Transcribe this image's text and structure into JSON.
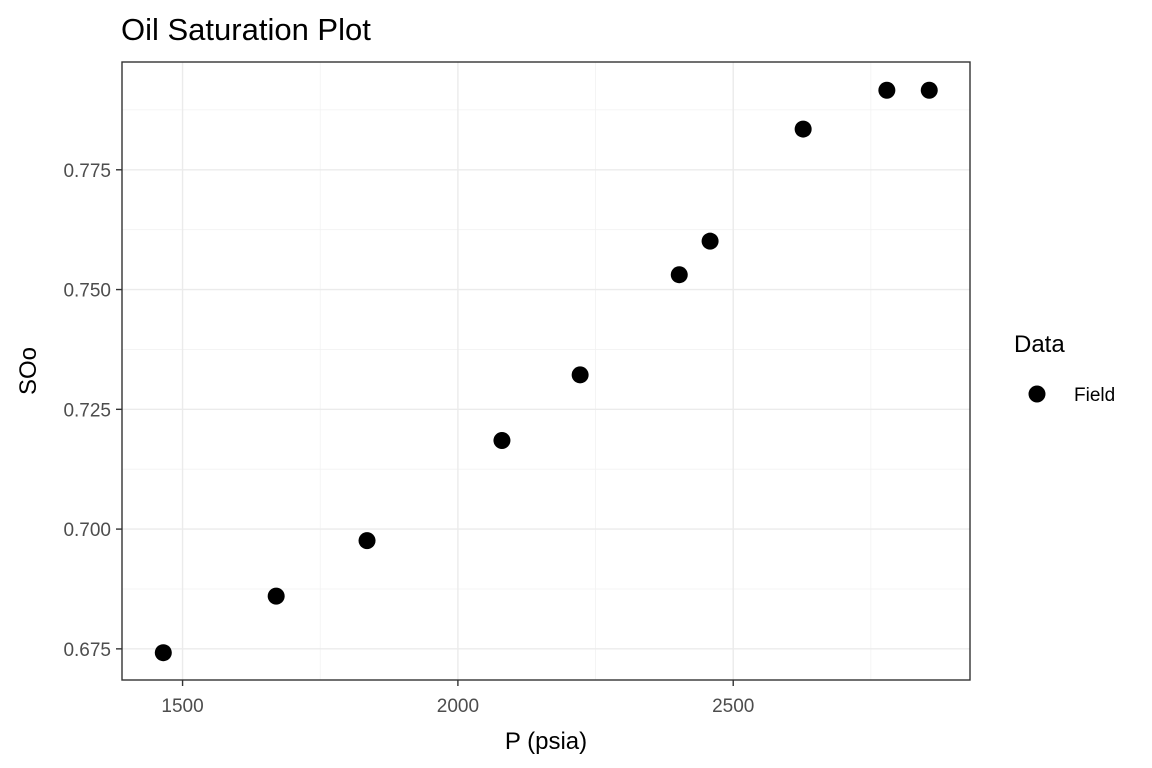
{
  "chart_data": {
    "type": "scatter",
    "title": "Oil Saturation Plot",
    "xlabel": "P (psia)",
    "ylabel": "SOo",
    "xlim": [
      1390,
      2930
    ],
    "ylim": [
      0.6685,
      0.7975
    ],
    "xticks": [
      1500,
      2000,
      2500
    ],
    "xtick_labels": [
      "1500",
      "2000",
      "2500"
    ],
    "yticks": [
      0.675,
      0.7,
      0.725,
      0.75,
      0.775
    ],
    "ytick_labels": [
      "0.675",
      "0.700",
      "0.725",
      "0.750",
      "0.775"
    ],
    "grid": true,
    "legend": {
      "title": "Data",
      "placement": "right",
      "entries": [
        "Field"
      ]
    },
    "series": [
      {
        "name": "Field",
        "color": "#000000",
        "x": [
          1465,
          1670,
          1835,
          2080,
          2222,
          2402,
          2458,
          2627,
          2779,
          2856
        ],
        "y": [
          0.6742,
          0.686,
          0.6976,
          0.7185,
          0.7322,
          0.7531,
          0.7601,
          0.7835,
          0.7916,
          0.7916
        ]
      }
    ]
  }
}
